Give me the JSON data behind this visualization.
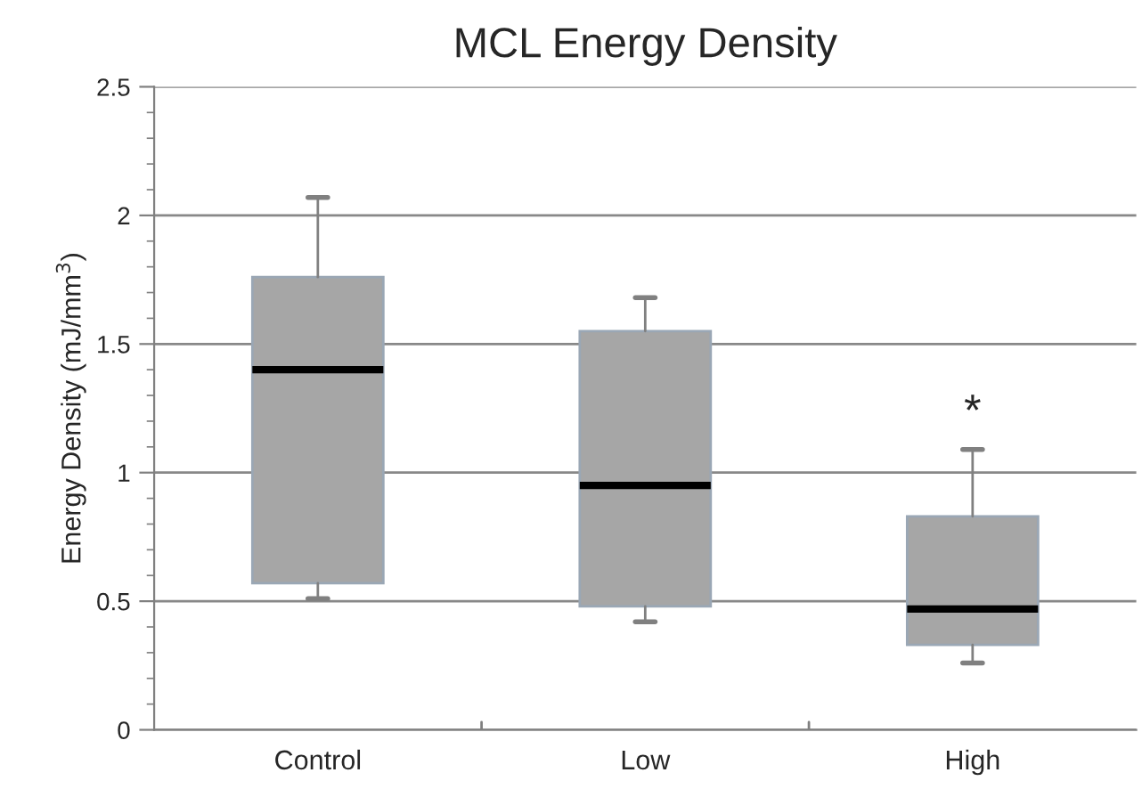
{
  "chart_data": {
    "type": "box",
    "title": "MCL Energy Density",
    "ylabel": "Energy Density (mJ/mm$^{3}$)",
    "categories": [
      "Control",
      "Low",
      "High"
    ],
    "boxes": [
      {
        "low": 0.51,
        "q1": 0.57,
        "median": 1.4,
        "q3": 1.76,
        "high": 2.07
      },
      {
        "low": 0.42,
        "q1": 0.48,
        "median": 0.95,
        "q3": 1.55,
        "high": 1.68
      },
      {
        "low": 0.26,
        "q1": 0.33,
        "median": 0.47,
        "q3": 0.83,
        "high": 1.09
      }
    ],
    "color": "#a6a6a6",
    "ylim": [
      0,
      2.5
    ],
    "yticks": [
      0,
      0.5,
      1,
      1.5,
      2,
      2.5
    ],
    "annotations": [
      "*"
    ],
    "grid": "y"
  }
}
